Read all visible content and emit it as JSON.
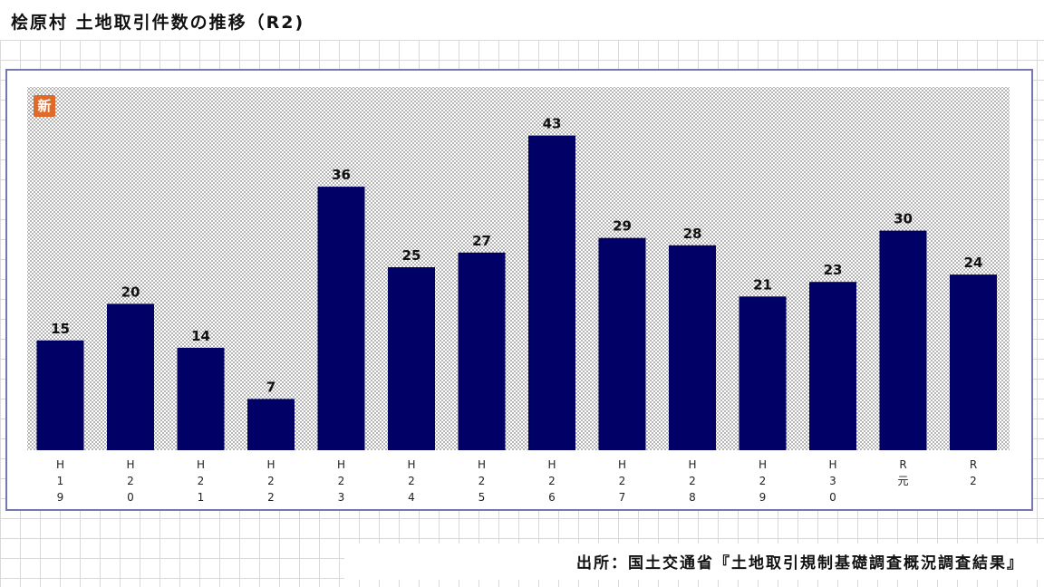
{
  "title": "桧原村 土地取引件数の推移（R2)",
  "badge": "新",
  "source": "出所：国土交通省『土地取引規制基礎調査概況調査結果』",
  "colors": {
    "bar": "#000066",
    "frame": "#7777b0",
    "badge": "#e06a2a"
  },
  "chart_data": {
    "type": "bar",
    "categories": [
      "H19",
      "H20",
      "H21",
      "H22",
      "H23",
      "H24",
      "H25",
      "H26",
      "H27",
      "H28",
      "H29",
      "H30",
      "R元",
      "R2"
    ],
    "category_labels": [
      [
        "H",
        "1",
        "9"
      ],
      [
        "H",
        "2",
        "0"
      ],
      [
        "H",
        "2",
        "1"
      ],
      [
        "H",
        "2",
        "2"
      ],
      [
        "H",
        "2",
        "3"
      ],
      [
        "H",
        "2",
        "4"
      ],
      [
        "H",
        "2",
        "5"
      ],
      [
        "H",
        "2",
        "6"
      ],
      [
        "H",
        "2",
        "7"
      ],
      [
        "H",
        "2",
        "8"
      ],
      [
        "H",
        "2",
        "9"
      ],
      [
        "H",
        "3",
        "0"
      ],
      [
        "R",
        "元"
      ],
      [
        "R",
        "2"
      ]
    ],
    "values": [
      15,
      20,
      14,
      7,
      36,
      25,
      27,
      43,
      29,
      28,
      21,
      23,
      30,
      24
    ],
    "ylim": [
      0,
      50
    ],
    "grid": false,
    "legend": "none",
    "data_labels": true
  }
}
